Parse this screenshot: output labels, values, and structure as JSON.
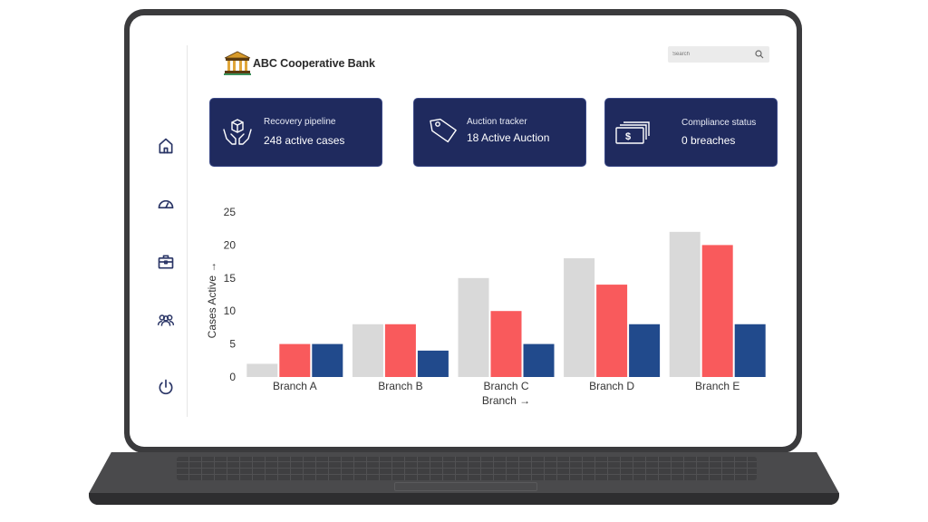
{
  "app": {
    "bank_name": "ABC Cooperative Bank",
    "logo_icon": "bank-building-icon"
  },
  "search": {
    "placeholder": "Search",
    "icon": "search-icon"
  },
  "sidebar": {
    "items": [
      {
        "icon": "home-icon"
      },
      {
        "icon": "speedometer-icon"
      },
      {
        "icon": "briefcase-icon"
      },
      {
        "icon": "users-icon"
      },
      {
        "icon": "power-icon"
      }
    ]
  },
  "cards": [
    {
      "title": "Recovery pipeline",
      "value": "248 active cases",
      "icon": "hands-box-icon"
    },
    {
      "title": "Auction tracker",
      "value": "18 Active Auction",
      "icon": "price-tag-icon"
    },
    {
      "title": "Compliance status",
      "value": "0 breaches",
      "icon": "cash-stack-icon"
    }
  ],
  "colors": {
    "card_bg": "#1f2a5e",
    "series_gray": "#d9d9d9",
    "series_red": "#f95a5c",
    "series_blue": "#214a8c"
  },
  "chart_data": {
    "type": "bar",
    "categories": [
      "Branch A",
      "Branch B",
      "Branch C",
      "Branch D",
      "Branch E"
    ],
    "series": [
      {
        "values": [
          2,
          8,
          15,
          18,
          22
        ],
        "color": "#d9d9d9"
      },
      {
        "values": [
          5,
          8,
          10,
          14,
          20
        ],
        "color": "#f95a5c"
      },
      {
        "values": [
          5,
          4,
          5,
          8,
          8
        ],
        "color": "#214a8c"
      }
    ],
    "xlabel": "Branch →",
    "ylabel": "Cases Active →",
    "yticks": [
      0,
      5,
      10,
      15,
      20,
      25
    ],
    "ylim": [
      0,
      25
    ],
    "grid": false,
    "legend": "none"
  }
}
